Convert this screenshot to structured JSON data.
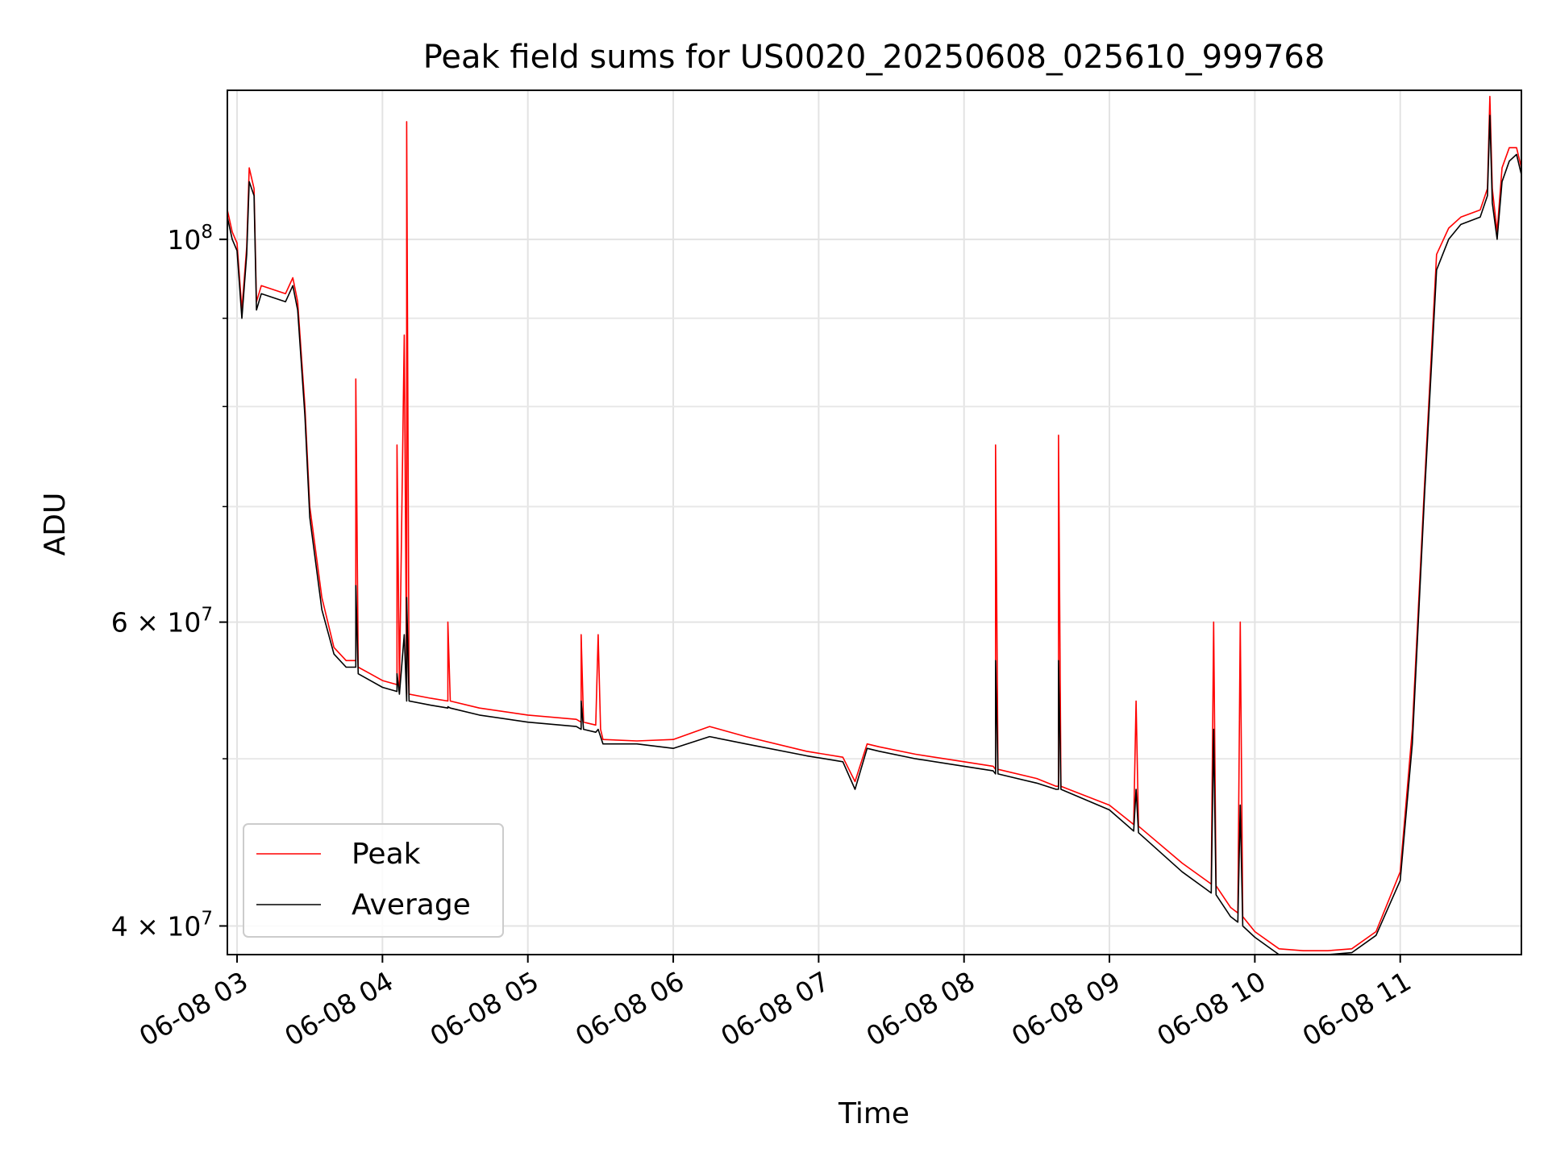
{
  "chart_data": {
    "type": "line",
    "title": "Peak field sums for US0020_20250608_025610_999768",
    "xlabel": "Time",
    "ylabel": "ADU",
    "xscale": "time",
    "yscale": "log",
    "xlim": [
      "2025-06-08T02:56",
      "2025-06-08T11:50"
    ],
    "ylim": [
      38500000,
      122000000
    ],
    "grid": true,
    "legend_position": "lower-left",
    "x_ticks": [
      {
        "value": "2025-06-08T03:00",
        "label": "06-08 03"
      },
      {
        "value": "2025-06-08T04:00",
        "label": "06-08 04"
      },
      {
        "value": "2025-06-08T05:00",
        "label": "06-08 05"
      },
      {
        "value": "2025-06-08T06:00",
        "label": "06-08 06"
      },
      {
        "value": "2025-06-08T07:00",
        "label": "06-08 07"
      },
      {
        "value": "2025-06-08T08:00",
        "label": "06-08 08"
      },
      {
        "value": "2025-06-08T09:00",
        "label": "06-08 09"
      },
      {
        "value": "2025-06-08T10:00",
        "label": "06-08 10"
      },
      {
        "value": "2025-06-08T11:00",
        "label": "06-08 11"
      }
    ],
    "y_major_ticks": [
      {
        "value": 100000000,
        "base": "10",
        "exp": "8"
      },
      {
        "value": 60000000,
        "base": "6 × 10",
        "exp": "7"
      },
      {
        "value": 40000000,
        "base": "4 × 10",
        "exp": "7"
      }
    ],
    "y_minor_ticks": [
      50000000,
      70000000,
      80000000,
      90000000
    ],
    "series": [
      {
        "name": "Peak",
        "color": "#ff0000",
        "x": [
          "2025-06-08T02:56",
          "2025-06-08T02:58",
          "2025-06-08T03:00",
          "2025-06-08T03:02",
          "2025-06-08T03:04",
          "2025-06-08T03:05",
          "2025-06-08T03:07",
          "2025-06-08T03:08",
          "2025-06-08T03:10",
          "2025-06-08T03:15",
          "2025-06-08T03:20",
          "2025-06-08T03:23",
          "2025-06-08T03:25",
          "2025-06-08T03:28",
          "2025-06-08T03:30",
          "2025-06-08T03:35",
          "2025-06-08T03:40",
          "2025-06-08T03:45",
          "2025-06-08T03:49",
          "2025-06-08T03:49",
          "2025-06-08T03:50",
          "2025-06-08T03:55",
          "2025-06-08T04:00",
          "2025-06-08T04:06",
          "2025-06-08T04:06",
          "2025-06-08T04:07",
          "2025-06-08T04:09",
          "2025-06-08T04:10",
          "2025-06-08T04:10",
          "2025-06-08T04:11",
          "2025-06-08T04:20",
          "2025-06-08T04:27",
          "2025-06-08T04:27",
          "2025-06-08T04:28",
          "2025-06-08T04:40",
          "2025-06-08T05:00",
          "2025-06-08T05:20",
          "2025-06-08T05:22",
          "2025-06-08T05:22",
          "2025-06-08T05:23",
          "2025-06-08T05:28",
          "2025-06-08T05:29",
          "2025-06-08T05:30",
          "2025-06-08T05:31",
          "2025-06-08T05:45",
          "2025-06-08T06:00",
          "2025-06-08T06:15",
          "2025-06-08T06:30",
          "2025-06-08T06:55",
          "2025-06-08T07:10",
          "2025-06-08T07:15",
          "2025-06-08T07:20",
          "2025-06-08T07:25",
          "2025-06-08T07:40",
          "2025-06-08T08:00",
          "2025-06-08T08:12",
          "2025-06-08T08:13",
          "2025-06-08T08:13",
          "2025-06-08T08:14",
          "2025-06-08T08:30",
          "2025-06-08T08:38",
          "2025-06-08T08:39",
          "2025-06-08T08:39",
          "2025-06-08T08:40",
          "2025-06-08T09:00",
          "2025-06-08T09:10",
          "2025-06-08T09:11",
          "2025-06-08T09:12",
          "2025-06-08T09:30",
          "2025-06-08T09:40",
          "2025-06-08T09:42",
          "2025-06-08T09:43",
          "2025-06-08T09:44",
          "2025-06-08T09:50",
          "2025-06-08T09:53",
          "2025-06-08T09:54",
          "2025-06-08T09:55",
          "2025-06-08T10:00",
          "2025-06-08T10:10",
          "2025-06-08T10:20",
          "2025-06-08T10:30",
          "2025-06-08T10:40",
          "2025-06-08T10:50",
          "2025-06-08T11:00",
          "2025-06-08T11:05",
          "2025-06-08T11:10",
          "2025-06-08T11:15",
          "2025-06-08T11:20",
          "2025-06-08T11:25",
          "2025-06-08T11:33",
          "2025-06-08T11:36",
          "2025-06-08T11:37",
          "2025-06-08T11:38",
          "2025-06-08T11:40",
          "2025-06-08T11:42",
          "2025-06-08T11:45",
          "2025-06-08T11:48",
          "2025-06-08T11:50"
        ],
        "values": [
          104000000,
          101000000,
          99500000,
          91000000,
          99000000,
          110000000,
          107000000,
          92000000,
          94000000,
          93500000,
          93000000,
          95000000,
          92000000,
          80000000,
          70000000,
          62000000,
          58000000,
          57000000,
          57000000,
          83000000,
          56500000,
          56000000,
          55500000,
          55200000,
          76000000,
          55000000,
          88000000,
          54500000,
          117000000,
          54500000,
          54200000,
          54000000,
          60000000,
          54000000,
          53500000,
          53000000,
          52700000,
          52500000,
          59000000,
          52500000,
          52300000,
          59000000,
          52000000,
          51300000,
          51200000,
          51300000,
          52200000,
          51500000,
          50500000,
          50100000,
          48500000,
          51000000,
          50800000,
          50300000,
          49800000,
          49500000,
          49300000,
          76000000,
          49300000,
          48700000,
          48200000,
          48200000,
          77000000,
          48200000,
          47000000,
          45800000,
          54000000,
          45700000,
          43500000,
          42500000,
          42300000,
          60000000,
          42200000,
          41000000,
          40700000,
          60000000,
          40500000,
          39700000,
          38800000,
          38700000,
          38700000,
          38800000,
          39700000,
          43000000,
          52000000,
          72000000,
          98000000,
          101500000,
          103000000,
          104000000,
          107000000,
          121000000,
          107000000,
          101000000,
          110000000,
          113000000,
          113000000,
          110000000
        ]
      },
      {
        "name": "Average",
        "color": "#000000",
        "x": [
          "2025-06-08T02:56",
          "2025-06-08T02:58",
          "2025-06-08T03:00",
          "2025-06-08T03:02",
          "2025-06-08T03:04",
          "2025-06-08T03:05",
          "2025-06-08T03:07",
          "2025-06-08T03:08",
          "2025-06-08T03:10",
          "2025-06-08T03:15",
          "2025-06-08T03:20",
          "2025-06-08T03:23",
          "2025-06-08T03:25",
          "2025-06-08T03:28",
          "2025-06-08T03:30",
          "2025-06-08T03:35",
          "2025-06-08T03:40",
          "2025-06-08T03:45",
          "2025-06-08T03:49",
          "2025-06-08T03:49",
          "2025-06-08T03:50",
          "2025-06-08T03:55",
          "2025-06-08T04:00",
          "2025-06-08T04:06",
          "2025-06-08T04:06",
          "2025-06-08T04:07",
          "2025-06-08T04:09",
          "2025-06-08T04:10",
          "2025-06-08T04:10",
          "2025-06-08T04:11",
          "2025-06-08T04:20",
          "2025-06-08T04:27",
          "2025-06-08T04:27",
          "2025-06-08T04:28",
          "2025-06-08T04:40",
          "2025-06-08T05:00",
          "2025-06-08T05:20",
          "2025-06-08T05:22",
          "2025-06-08T05:22",
          "2025-06-08T05:23",
          "2025-06-08T05:28",
          "2025-06-08T05:29",
          "2025-06-08T05:30",
          "2025-06-08T05:31",
          "2025-06-08T05:45",
          "2025-06-08T06:00",
          "2025-06-08T06:15",
          "2025-06-08T06:30",
          "2025-06-08T06:55",
          "2025-06-08T07:10",
          "2025-06-08T07:15",
          "2025-06-08T07:20",
          "2025-06-08T07:25",
          "2025-06-08T07:40",
          "2025-06-08T08:00",
          "2025-06-08T08:12",
          "2025-06-08T08:13",
          "2025-06-08T08:13",
          "2025-06-08T08:14",
          "2025-06-08T08:30",
          "2025-06-08T08:38",
          "2025-06-08T08:39",
          "2025-06-08T08:39",
          "2025-06-08T08:40",
          "2025-06-08T09:00",
          "2025-06-08T09:10",
          "2025-06-08T09:11",
          "2025-06-08T09:12",
          "2025-06-08T09:30",
          "2025-06-08T09:40",
          "2025-06-08T09:42",
          "2025-06-08T09:43",
          "2025-06-08T09:44",
          "2025-06-08T09:50",
          "2025-06-08T09:53",
          "2025-06-08T09:54",
          "2025-06-08T09:55",
          "2025-06-08T10:00",
          "2025-06-08T10:10",
          "2025-06-08T10:20",
          "2025-06-08T10:30",
          "2025-06-08T10:40",
          "2025-06-08T10:50",
          "2025-06-08T11:00",
          "2025-06-08T11:05",
          "2025-06-08T11:10",
          "2025-06-08T11:15",
          "2025-06-08T11:20",
          "2025-06-08T11:25",
          "2025-06-08T11:33",
          "2025-06-08T11:36",
          "2025-06-08T11:37",
          "2025-06-08T11:38",
          "2025-06-08T11:40",
          "2025-06-08T11:42",
          "2025-06-08T11:45",
          "2025-06-08T11:48",
          "2025-06-08T11:50"
        ],
        "values": [
          103000000,
          100000000,
          98500000,
          90000000,
          98000000,
          108000000,
          106000000,
          91000000,
          93000000,
          92500000,
          92000000,
          94000000,
          91000000,
          79000000,
          69000000,
          61000000,
          57500000,
          56500000,
          56500000,
          63000000,
          56000000,
          55500000,
          55000000,
          54700000,
          56000000,
          54500000,
          59000000,
          54000000,
          62000000,
          54000000,
          53700000,
          53500000,
          53600000,
          53500000,
          53000000,
          52500000,
          52200000,
          52000000,
          54000000,
          52000000,
          51800000,
          52000000,
          51500000,
          51000000,
          51000000,
          50700000,
          51500000,
          51000000,
          50200000,
          49800000,
          48000000,
          50700000,
          50500000,
          50000000,
          49500000,
          49200000,
          49000000,
          57000000,
          49000000,
          48400000,
          48000000,
          48000000,
          57000000,
          48000000,
          46700000,
          45400000,
          48000000,
          45300000,
          43000000,
          42000000,
          41800000,
          52000000,
          41700000,
          40500000,
          40200000,
          47000000,
          40000000,
          39400000,
          38500000,
          38500000,
          38500000,
          38600000,
          39500000,
          42500000,
          51000000,
          71000000,
          96000000,
          100000000,
          102000000,
          103000000,
          106000000,
          118000000,
          105000000,
          100000000,
          108000000,
          111000000,
          112000000,
          109000000
        ]
      }
    ]
  }
}
